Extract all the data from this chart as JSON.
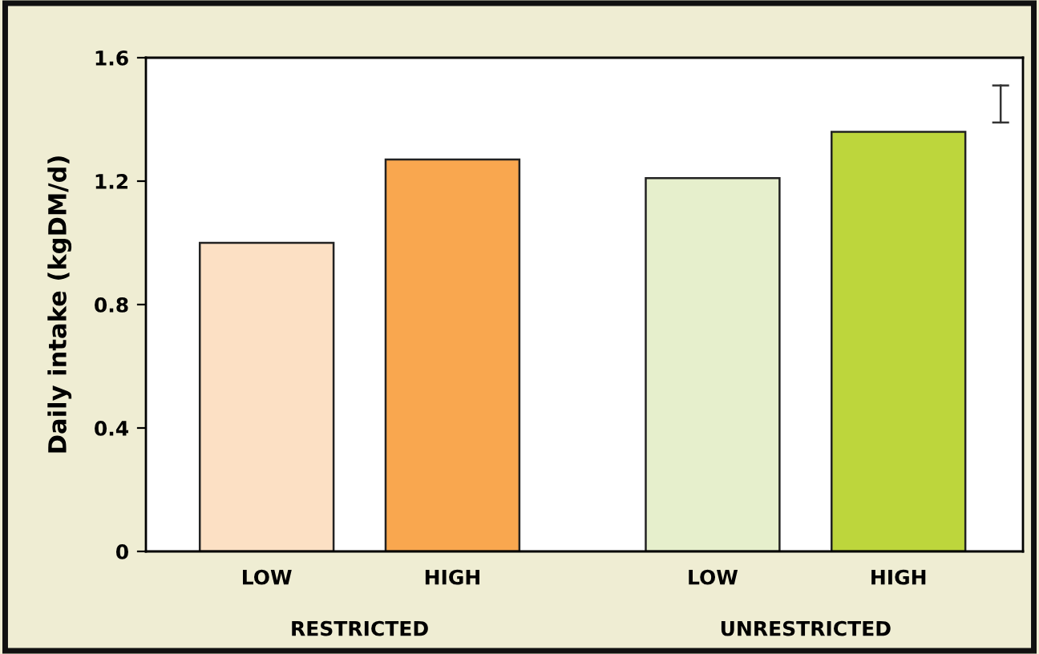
{
  "chart_data": {
    "type": "bar",
    "ylabel": "Daily intake (kgDM/d)",
    "categories": [
      "LOW",
      "HIGH",
      "LOW",
      "HIGH"
    ],
    "values": [
      1.0,
      1.27,
      1.21,
      1.36
    ],
    "colors": [
      "#fce0c4",
      "#f9a74f",
      "#e6efcc",
      "#bdd63c"
    ],
    "ylim": [
      0,
      1.6
    ],
    "yticks": [
      {
        "value": 0,
        "label": "0"
      },
      0.4,
      0.8,
      1.2,
      1.6
    ],
    "annotations": [
      "RESTRICTED",
      "UNRESTRICTED"
    ],
    "grid": false
  }
}
